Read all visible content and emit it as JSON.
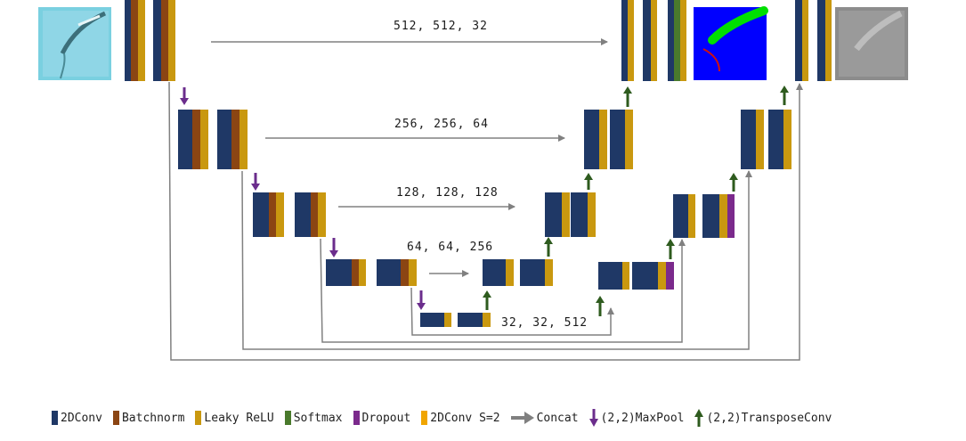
{
  "colors": {
    "conv": "#1f3866",
    "batchnorm": "#8b4513",
    "leaky": "#c9980f",
    "softmax": "#4a7a2c",
    "dropout": "#7b2a8c",
    "conv_s2": "#f0a500",
    "concat": "#808080",
    "maxpool": "#6b2d8c",
    "transpose": "#2e5b1e"
  },
  "labels": {
    "skip1": "512, 512, 32",
    "skip2": "256, 256, 64",
    "skip3": "128, 128, 128",
    "skip4": "64, 64, 256",
    "bottleneck": "32, 32, 512"
  },
  "legend": [
    {
      "label": "2DConv",
      "color": "#1f3866",
      "kind": "swatch"
    },
    {
      "label": "Batchnorm",
      "color": "#8b4513",
      "kind": "swatch"
    },
    {
      "label": "Leaky ReLU",
      "color": "#c9980f",
      "kind": "swatch"
    },
    {
      "label": "Softmax",
      "color": "#4a7a2c",
      "kind": "swatch"
    },
    {
      "label": "Dropout",
      "color": "#7b2a8c",
      "kind": "swatch"
    },
    {
      "label": "2DConv S=2",
      "color": "#f0a500",
      "kind": "swatch"
    },
    {
      "label": "Concat",
      "color": "#808080",
      "kind": "arrow-right"
    },
    {
      "label": "(2,2)MaxPool",
      "color": "#6b2d8c",
      "kind": "arrow-down"
    },
    {
      "label": "(2,2)TransposeConv",
      "color": "#2e5b1e",
      "kind": "arrow-up"
    }
  ],
  "images": {
    "input": "input-image",
    "mask": "segmentation-mask",
    "output": "output-image"
  }
}
